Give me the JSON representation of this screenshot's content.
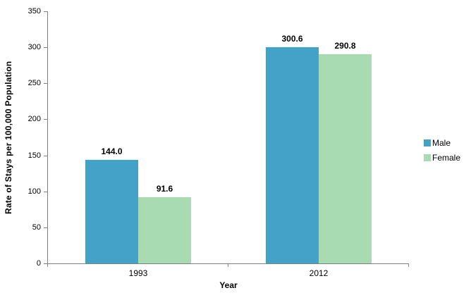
{
  "chart_data": {
    "type": "bar",
    "title": "",
    "xlabel": "Year",
    "ylabel": "Rate of Stays per 100,000 Population",
    "categories": [
      "1993",
      "2012"
    ],
    "series": [
      {
        "name": "Male",
        "color": "#44A2C8",
        "values": [
          144.0,
          300.6
        ],
        "labels": [
          "144.0",
          "300.6"
        ]
      },
      {
        "name": "Female",
        "color": "#A9DBB2",
        "values": [
          91.6,
          290.8
        ],
        "labels": [
          "91.6",
          "290.8"
        ]
      }
    ],
    "ylim": [
      0,
      350
    ],
    "yticks": [
      0,
      50,
      100,
      150,
      200,
      250,
      300,
      350
    ],
    "grid": false,
    "legend_position": "right"
  },
  "style": {
    "axis_color": "#808080",
    "text_color": "#000000",
    "background": "#FFFFFF"
  }
}
